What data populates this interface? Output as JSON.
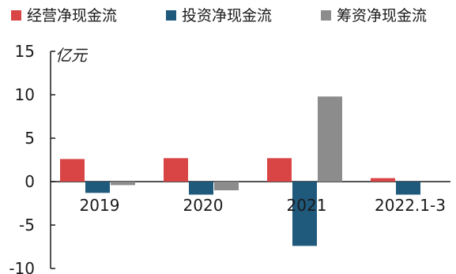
{
  "chart_data": {
    "type": "bar",
    "title": "",
    "ylabel": "亿元",
    "xlabel": "",
    "categories": [
      "2019",
      "2020",
      "2021",
      "2022.1-3"
    ],
    "ylim": [
      -10,
      15
    ],
    "yticks": [
      15,
      10,
      5,
      0,
      -5,
      -10
    ],
    "grid": false,
    "legend_position": "top",
    "series": [
      {
        "name": "经营净现金流",
        "color": "#d94545",
        "values": [
          2.6,
          2.7,
          2.7,
          0.4
        ]
      },
      {
        "name": "投资净现金流",
        "color": "#1f5a7d",
        "values": [
          -1.3,
          -1.5,
          -7.4,
          -1.5
        ]
      },
      {
        "name": "筹资净现金流",
        "color": "#8c8c8c",
        "values": [
          -0.4,
          -1.0,
          9.8,
          0.0
        ]
      }
    ]
  }
}
